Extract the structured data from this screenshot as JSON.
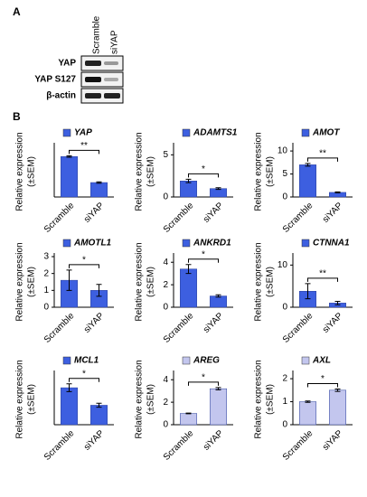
{
  "panel_a": {
    "label": "A",
    "lanes": [
      "Scramble",
      "siYAP"
    ],
    "rows": [
      "YAP",
      "YAP S127",
      "β-actin"
    ]
  },
  "panel_b_label": "B",
  "chart_data": [
    {
      "type": "bar",
      "title": "YAP",
      "ylabel": [
        "Relative expression",
        "(±SEM)"
      ],
      "categories": [
        "Scramble",
        "siYAP"
      ],
      "values": [
        2.8,
        1.0
      ],
      "errors": [
        0.05,
        0.05
      ],
      "color": "#3d5fe0",
      "ylim": [
        0,
        3.5
      ],
      "yticks": [],
      "significance": "**"
    },
    {
      "type": "bar",
      "title": "ADAMTS1",
      "ylabel": [
        "Relative expression",
        "(±SEM)"
      ],
      "categories": [
        "Scramble",
        "siYAP"
      ],
      "values": [
        1.9,
        1.0
      ],
      "errors": [
        0.2,
        0.1
      ],
      "color": "#3d5fe0",
      "ylim": [
        0,
        6
      ],
      "yticks": [
        0,
        5
      ],
      "significance": "*"
    },
    {
      "type": "bar",
      "title": "AMOT",
      "ylabel": [
        "Relative expression",
        "(±SEM)"
      ],
      "categories": [
        "Scramble",
        "siYAP"
      ],
      "values": [
        7.0,
        1.0
      ],
      "errors": [
        0.3,
        0.1
      ],
      "color": "#3d5fe0",
      "ylim": [
        0,
        11
      ],
      "yticks": [
        0,
        5,
        10
      ],
      "significance": "**"
    },
    {
      "type": "bar",
      "title": "AMOTL1",
      "ylabel": [
        "Relative expression",
        "(±SEM)"
      ],
      "categories": [
        "Scramble",
        "siYAP"
      ],
      "values": [
        1.6,
        1.0
      ],
      "errors": [
        0.6,
        0.35
      ],
      "color": "#3d5fe0",
      "ylim": [
        0,
        3
      ],
      "yticks": [
        0,
        1,
        2,
        3
      ],
      "significance": "*"
    },
    {
      "type": "bar",
      "title": "ANKRD1",
      "ylabel": [
        "Relative expression",
        "(±SEM)"
      ],
      "categories": [
        "Scramble",
        "siYAP"
      ],
      "values": [
        3.4,
        1.0
      ],
      "errors": [
        0.4,
        0.1
      ],
      "color": "#3d5fe0",
      "ylim": [
        0,
        4.5
      ],
      "yticks": [
        0,
        2,
        4
      ],
      "significance": "*"
    },
    {
      "type": "bar",
      "title": "CTNNA1",
      "ylabel": [
        "Relative expression",
        "(±SEM)"
      ],
      "categories": [
        "Scramble",
        "siYAP"
      ],
      "values": [
        3.8,
        1.0
      ],
      "errors": [
        1.8,
        0.4
      ],
      "color": "#3d5fe0",
      "ylim": [
        0,
        12
      ],
      "yticks": [
        0,
        10
      ],
      "significance": "**"
    },
    {
      "type": "bar",
      "title": "MCL1",
      "ylabel": [
        "Relative expression",
        "(±SEM)"
      ],
      "categories": [
        "Scramble",
        "siYAP"
      ],
      "values": [
        1.9,
        1.0
      ],
      "errors": [
        0.2,
        0.1
      ],
      "color": "#3d5fe0",
      "ylim": [
        0,
        2.6
      ],
      "yticks": [],
      "significance": "*"
    },
    {
      "type": "bar",
      "title": "AREG",
      "ylabel": [
        "Relative expression",
        "(±SEM)"
      ],
      "categories": [
        "Scramble",
        "siYAP"
      ],
      "values": [
        1.0,
        3.2
      ],
      "errors": [
        0.03,
        0.1
      ],
      "color": "#c3c6ee",
      "ylim": [
        0,
        4.5
      ],
      "yticks": [
        0,
        2,
        4
      ],
      "significance": "*"
    },
    {
      "type": "bar",
      "title": "AXL",
      "ylabel": [
        "Relative expression",
        "(±SEM)"
      ],
      "categories": [
        "Scramble",
        "siYAP"
      ],
      "values": [
        1.0,
        1.5
      ],
      "errors": [
        0.03,
        0.05
      ],
      "color": "#c3c6ee",
      "ylim": [
        0,
        2.2
      ],
      "yticks": [
        0,
        1,
        2
      ],
      "significance": "*"
    }
  ]
}
